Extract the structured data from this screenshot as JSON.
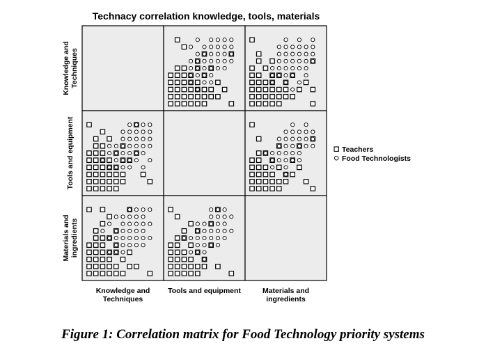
{
  "figure": {
    "caption": "Figure 1: Correlation matrix for Food Technology priority systems"
  },
  "chart_data": {
    "type": "scatter",
    "subtype": "scatterplot-matrix",
    "title": "Technacy correlation knowledge, tools, materials",
    "variables": [
      {
        "row_label": [
          "Knowledge and",
          "Techniques"
        ],
        "col_label": [
          "Knowledge and",
          "Techniques"
        ]
      },
      {
        "row_label": [
          "Tools and equipment"
        ],
        "col_label": [
          "Tools and equipment"
        ]
      },
      {
        "row_label": [
          "Materials and",
          "ingredients"
        ],
        "col_label": [
          "Materials and",
          "ingredients"
        ]
      }
    ],
    "scale": [
      0,
      10
    ],
    "panel_background": "#ececec",
    "legend": {
      "position": "right",
      "entries": [
        {
          "label": "Teachers",
          "marker": "square"
        },
        {
          "label": "Food Technologists",
          "marker": "circle"
        }
      ]
    },
    "series": [
      {
        "name": "Teachers",
        "marker": "square",
        "points": {
          "tools_vs_knowledge": [
            [
              0,
              0
            ],
            [
              1,
              0
            ],
            [
              2,
              0
            ],
            [
              3,
              0
            ],
            [
              4,
              0
            ],
            [
              0,
              1
            ],
            [
              1,
              1
            ],
            [
              2,
              1
            ],
            [
              3,
              1
            ],
            [
              4,
              1
            ],
            [
              5,
              1
            ],
            [
              0,
              2
            ],
            [
              1,
              2
            ],
            [
              2,
              2
            ],
            [
              3,
              2
            ],
            [
              4,
              2
            ],
            [
              5,
              2
            ],
            [
              0,
              3
            ],
            [
              1,
              3
            ],
            [
              2,
              3
            ],
            [
              3,
              3
            ],
            [
              4,
              3
            ],
            [
              0,
              4
            ],
            [
              1,
              4
            ],
            [
              2,
              4
            ],
            [
              3,
              4
            ],
            [
              5,
              4
            ],
            [
              6,
              4
            ],
            [
              0,
              5
            ],
            [
              1,
              5
            ],
            [
              2,
              5
            ],
            [
              4,
              5
            ],
            [
              7,
              5
            ],
            [
              1,
              6
            ],
            [
              2,
              6
            ],
            [
              5,
              6
            ],
            [
              1,
              7
            ],
            [
              3,
              7
            ],
            [
              2,
              8
            ],
            [
              8,
              2
            ],
            [
              9,
              1
            ],
            [
              0,
              9
            ],
            [
              7,
              9
            ]
          ],
          "materials_vs_knowledge": [
            [
              0,
              0
            ],
            [
              1,
              0
            ],
            [
              2,
              0
            ],
            [
              3,
              0
            ],
            [
              4,
              0
            ],
            [
              5,
              0
            ],
            [
              0,
              1
            ],
            [
              1,
              1
            ],
            [
              2,
              1
            ],
            [
              3,
              1
            ],
            [
              4,
              1
            ],
            [
              6,
              1
            ],
            [
              0,
              2
            ],
            [
              1,
              2
            ],
            [
              2,
              2
            ],
            [
              3,
              2
            ],
            [
              5,
              2
            ],
            [
              0,
              3
            ],
            [
              1,
              3
            ],
            [
              2,
              3
            ],
            [
              3,
              3
            ],
            [
              4,
              3
            ],
            [
              6,
              3
            ],
            [
              0,
              4
            ],
            [
              1,
              4
            ],
            [
              2,
              4
            ],
            [
              4,
              4
            ],
            [
              1,
              5
            ],
            [
              2,
              5
            ],
            [
              3,
              5
            ],
            [
              1,
              6
            ],
            [
              4,
              6
            ],
            [
              2,
              7
            ],
            [
              3,
              8
            ],
            [
              2,
              9
            ],
            [
              7,
              1
            ],
            [
              9,
              0
            ],
            [
              0,
              9
            ],
            [
              6,
              9
            ]
          ],
          "materials_vs_tools": [
            [
              0,
              0
            ],
            [
              1,
              0
            ],
            [
              2,
              0
            ],
            [
              3,
              0
            ],
            [
              4,
              0
            ],
            [
              0,
              1
            ],
            [
              1,
              1
            ],
            [
              2,
              1
            ],
            [
              3,
              1
            ],
            [
              4,
              1
            ],
            [
              5,
              1
            ],
            [
              0,
              2
            ],
            [
              1,
              2
            ],
            [
              2,
              2
            ],
            [
              3,
              2
            ],
            [
              5,
              2
            ],
            [
              0,
              3
            ],
            [
              1,
              3
            ],
            [
              2,
              3
            ],
            [
              4,
              3
            ],
            [
              0,
              4
            ],
            [
              1,
              4
            ],
            [
              3,
              4
            ],
            [
              6,
              4
            ],
            [
              1,
              5
            ],
            [
              2,
              5
            ],
            [
              2,
              6
            ],
            [
              4,
              6
            ],
            [
              3,
              7
            ],
            [
              6,
              7
            ],
            [
              1,
              8
            ],
            [
              7,
              1
            ],
            [
              9,
              0
            ],
            [
              0,
              9
            ],
            [
              7,
              9
            ]
          ]
        }
      },
      {
        "name": "Food Technologists",
        "marker": "circle",
        "points": {
          "tools_vs_knowledge": [
            [
              3,
              3
            ],
            [
              4,
              3
            ],
            [
              5,
              3
            ],
            [
              4,
              4
            ],
            [
              5,
              4
            ],
            [
              6,
              4
            ],
            [
              7,
              4
            ],
            [
              4,
              5
            ],
            [
              5,
              5
            ],
            [
              6,
              5
            ],
            [
              7,
              5
            ],
            [
              8,
              5
            ],
            [
              5,
              6
            ],
            [
              6,
              6
            ],
            [
              7,
              6
            ],
            [
              8,
              6
            ],
            [
              5,
              7
            ],
            [
              6,
              7
            ],
            [
              7,
              7
            ],
            [
              8,
              7
            ],
            [
              9,
              7
            ],
            [
              6,
              8
            ],
            [
              7,
              8
            ],
            [
              8,
              8
            ],
            [
              9,
              8
            ],
            [
              7,
              9
            ],
            [
              8,
              9
            ],
            [
              9,
              9
            ],
            [
              6,
              9
            ],
            [
              3,
              5
            ],
            [
              4,
              6
            ],
            [
              2,
              4
            ],
            [
              3,
              6
            ],
            [
              5,
              8
            ],
            [
              8,
              3
            ],
            [
              9,
              4
            ],
            [
              9,
              6
            ],
            [
              6,
              3
            ]
          ],
          "materials_vs_knowledge": [
            [
              3,
              3
            ],
            [
              4,
              3
            ],
            [
              5,
              3
            ],
            [
              4,
              4
            ],
            [
              5,
              4
            ],
            [
              6,
              4
            ],
            [
              7,
              4
            ],
            [
              3,
              5
            ],
            [
              4,
              5
            ],
            [
              5,
              5
            ],
            [
              6,
              5
            ],
            [
              7,
              5
            ],
            [
              8,
              5
            ],
            [
              4,
              6
            ],
            [
              5,
              6
            ],
            [
              6,
              6
            ],
            [
              7,
              6
            ],
            [
              8,
              6
            ],
            [
              5,
              7
            ],
            [
              6,
              7
            ],
            [
              7,
              7
            ],
            [
              8,
              7
            ],
            [
              9,
              7
            ],
            [
              5,
              8
            ],
            [
              6,
              8
            ],
            [
              7,
              8
            ],
            [
              8,
              8
            ],
            [
              7,
              9
            ],
            [
              8,
              9
            ],
            [
              9,
              9
            ],
            [
              4,
              8
            ],
            [
              3,
              7
            ],
            [
              6,
              9
            ],
            [
              9,
              5
            ],
            [
              2,
              6
            ],
            [
              8,
              4
            ]
          ],
          "materials_vs_tools": [
            [
              3,
              3
            ],
            [
              4,
              3
            ],
            [
              5,
              3
            ],
            [
              4,
              4
            ],
            [
              5,
              4
            ],
            [
              6,
              4
            ],
            [
              7,
              4
            ],
            [
              3,
              5
            ],
            [
              4,
              5
            ],
            [
              5,
              5
            ],
            [
              6,
              5
            ],
            [
              7,
              5
            ],
            [
              8,
              5
            ],
            [
              4,
              6
            ],
            [
              5,
              6
            ],
            [
              6,
              6
            ],
            [
              7,
              6
            ],
            [
              8,
              6
            ],
            [
              5,
              7
            ],
            [
              6,
              7
            ],
            [
              7,
              7
            ],
            [
              8,
              7
            ],
            [
              6,
              8
            ],
            [
              7,
              8
            ],
            [
              8,
              8
            ],
            [
              9,
              8
            ],
            [
              7,
              9
            ],
            [
              8,
              9
            ],
            [
              4,
              7
            ],
            [
              2,
              5
            ],
            [
              6,
              9
            ],
            [
              9,
              6
            ],
            [
              5,
              2
            ]
          ]
        }
      }
    ]
  }
}
